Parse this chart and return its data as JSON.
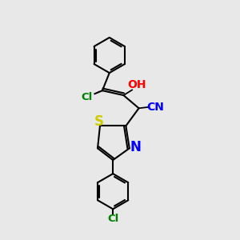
{
  "background_color": "#e8e8e8",
  "line_color": "#000000",
  "lw": 1.5,
  "figsize": [
    3.0,
    3.0
  ],
  "dpi": 100,
  "xlim": [
    0,
    10
  ],
  "ylim": [
    0,
    10
  ],
  "colors": {
    "bond": "#000000",
    "Cl": "#008000",
    "S": "#cccc00",
    "N": "#0000ff",
    "OH": "#ff0000",
    "CN": "#0000ff"
  }
}
